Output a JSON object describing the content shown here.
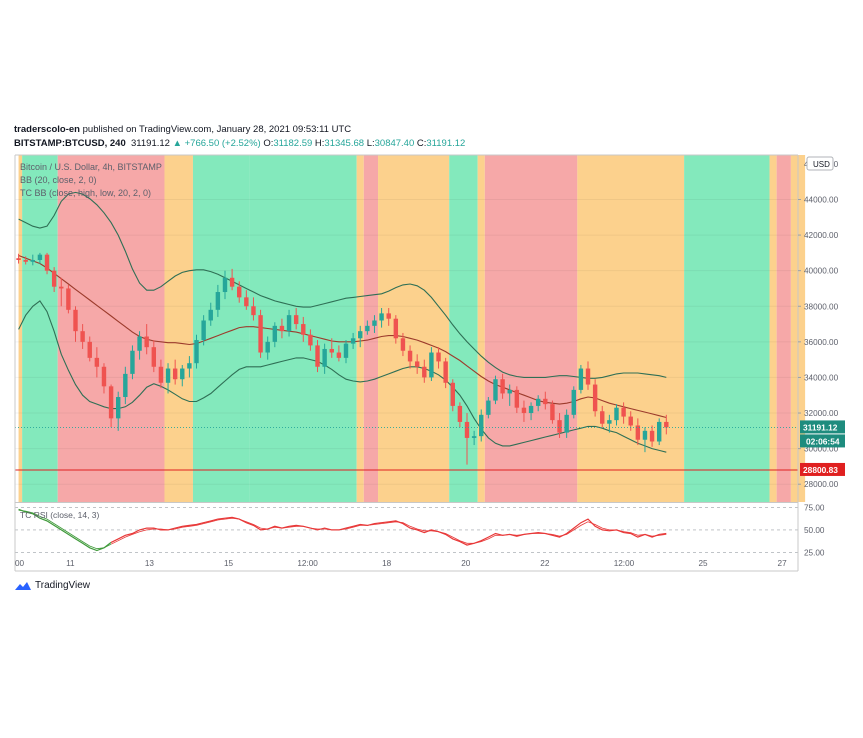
{
  "header": {
    "author": "traderscolo-en",
    "published": "published on TradingView.com, January 28, 2021 09:53:11 UTC",
    "symbol": "BITSTAMP:BTCUSD, 240",
    "last": "31191.12",
    "change": "▲ +766.50 (+2.52%)",
    "o_label": "O:",
    "o_val": "31182.59",
    "h_label": "H:",
    "h_val": "31345.68",
    "l_label": "L:",
    "l_val": "30847.40",
    "c_label": "C:",
    "c_val": "31191.12"
  },
  "legend": {
    "title": "Bitcoin / U.S. Dollar, 4h, BITSTAMP",
    "bb": "BB (20, close, 2, 0)",
    "tcbb": "TC BB (close, high, low, 20, 2, 0)",
    "rsi": "TC RSI (close, 14, 3)"
  },
  "currency": "USD",
  "price_tag": "31191.12",
  "countdown": "02:06:54",
  "level_tag": "28800.83",
  "brand": "TradingView",
  "colors": {
    "up": "#26a69a",
    "down": "#ef5350",
    "zone_green": "#7ce8b8",
    "zone_red": "#f5a3a3",
    "zone_orange": "#fccf87",
    "level": "#e02020",
    "rsi": "#e83838",
    "rsi_early": "#3f9a3a"
  },
  "chart_data": {
    "type": "candlestick",
    "title": "Bitcoin / U.S. Dollar, 4h, BITSTAMP",
    "ylim": [
      27000,
      46500
    ],
    "y_ticks": [
      "28000.00",
      "30000.00",
      "32000.00",
      "34000.00",
      "36000.00",
      "38000.00",
      "40000.00",
      "42000.00",
      "44000.00"
    ],
    "y_top_partial": "46000.00",
    "x_ticks": [
      "00",
      "11",
      "13",
      "15",
      "12:00",
      "18",
      "20",
      "22",
      "12:00",
      "25",
      "27"
    ],
    "candles": [
      [
        40700,
        40950,
        40400,
        40600
      ],
      [
        40600,
        40800,
        40350,
        40500
      ],
      [
        40500,
        40900,
        40300,
        40600
      ],
      [
        40600,
        41000,
        40400,
        40900
      ],
      [
        40900,
        41000,
        39800,
        40000
      ],
      [
        40000,
        40200,
        38800,
        39100
      ],
      [
        39100,
        39600,
        38000,
        39000
      ],
      [
        39000,
        39200,
        37600,
        37800
      ],
      [
        37800,
        38000,
        36000,
        36600
      ],
      [
        36600,
        37000,
        35600,
        36000
      ],
      [
        36000,
        36300,
        34900,
        35100
      ],
      [
        35100,
        35700,
        34000,
        34600
      ],
      [
        34600,
        34800,
        33100,
        33500
      ],
      [
        33500,
        33600,
        31200,
        31700
      ],
      [
        31700,
        33200,
        31000,
        32900
      ],
      [
        32900,
        34600,
        32500,
        34200
      ],
      [
        34200,
        35800,
        33900,
        35500
      ],
      [
        35500,
        36600,
        35000,
        36300
      ],
      [
        36300,
        37000,
        35300,
        35700
      ],
      [
        35700,
        36100,
        34300,
        34600
      ],
      [
        34600,
        35000,
        33400,
        33700
      ],
      [
        33700,
        34800,
        33100,
        34500
      ],
      [
        34500,
        35000,
        33600,
        33900
      ],
      [
        33900,
        34700,
        33500,
        34500
      ],
      [
        34500,
        35200,
        34000,
        34800
      ],
      [
        34800,
        36400,
        34500,
        36100
      ],
      [
        36100,
        37500,
        35800,
        37200
      ],
      [
        37200,
        38200,
        36900,
        37800
      ],
      [
        37800,
        39200,
        37400,
        38800
      ],
      [
        38800,
        40000,
        38400,
        39600
      ],
      [
        39600,
        40100,
        38900,
        39100
      ],
      [
        39100,
        39400,
        38200,
        38500
      ],
      [
        38500,
        38900,
        37800,
        38000
      ],
      [
        38000,
        38500,
        37200,
        37500
      ],
      [
        37500,
        37800,
        35100,
        35400
      ],
      [
        35400,
        36300,
        35000,
        36000
      ],
      [
        36000,
        37100,
        35700,
        36900
      ],
      [
        36900,
        37300,
        36200,
        36600
      ],
      [
        36600,
        37800,
        36300,
        37500
      ],
      [
        37500,
        37900,
        36700,
        37000
      ],
      [
        37000,
        37400,
        36000,
        36400
      ],
      [
        36400,
        36700,
        35500,
        35800
      ],
      [
        35800,
        36100,
        34300,
        34600
      ],
      [
        34600,
        35900,
        34200,
        35600
      ],
      [
        35600,
        36200,
        35100,
        35400
      ],
      [
        35400,
        35800,
        34900,
        35100
      ],
      [
        35100,
        36100,
        34800,
        35900
      ],
      [
        35900,
        36500,
        35600,
        36200
      ],
      [
        36200,
        36900,
        35700,
        36600
      ],
      [
        36600,
        37200,
        36400,
        36900
      ],
      [
        36900,
        37500,
        36500,
        37200
      ],
      [
        37200,
        37900,
        36800,
        37600
      ],
      [
        37600,
        37900,
        36900,
        37300
      ],
      [
        37300,
        37500,
        35900,
        36200
      ],
      [
        36200,
        36500,
        35200,
        35500
      ],
      [
        35500,
        35800,
        34500,
        34900
      ],
      [
        34900,
        35300,
        34200,
        34600
      ],
      [
        34600,
        35000,
        33700,
        34000
      ],
      [
        34000,
        35700,
        33800,
        35400
      ],
      [
        35400,
        35700,
        34500,
        34900
      ],
      [
        34900,
        35100,
        33400,
        33700
      ],
      [
        33700,
        33900,
        32100,
        32400
      ],
      [
        32400,
        32600,
        31200,
        31500
      ],
      [
        31500,
        32000,
        29100,
        30600
      ],
      [
        30600,
        31000,
        30200,
        30700
      ],
      [
        30700,
        32200,
        30400,
        31900
      ],
      [
        31900,
        32900,
        31700,
        32700
      ],
      [
        32700,
        34100,
        32500,
        33900
      ],
      [
        33900,
        34200,
        32800,
        33100
      ],
      [
        33100,
        33600,
        32400,
        33300
      ],
      [
        33300,
        33500,
        32000,
        32300
      ],
      [
        32300,
        32700,
        31500,
        32000
      ],
      [
        32000,
        32600,
        31600,
        32400
      ],
      [
        32400,
        33000,
        32100,
        32800
      ],
      [
        32800,
        33200,
        32200,
        32500
      ],
      [
        32500,
        32700,
        31400,
        31600
      ],
      [
        31600,
        32000,
        30600,
        30900
      ],
      [
        30900,
        32200,
        30600,
        31900
      ],
      [
        31900,
        33500,
        31700,
        33300
      ],
      [
        33300,
        34700,
        33100,
        34500
      ],
      [
        34500,
        34900,
        33300,
        33600
      ],
      [
        33600,
        33900,
        31800,
        32100
      ],
      [
        32100,
        32400,
        31200,
        31400
      ],
      [
        31400,
        31900,
        30900,
        31600
      ],
      [
        31600,
        32500,
        31300,
        32300
      ],
      [
        32300,
        32600,
        31400,
        31800
      ],
      [
        31800,
        32100,
        31000,
        31300
      ],
      [
        31300,
        31700,
        30200,
        30500
      ],
      [
        30500,
        31200,
        29800,
        31000
      ],
      [
        31000,
        31300,
        30100,
        30400
      ],
      [
        30400,
        31700,
        30200,
        31500
      ],
      [
        31500,
        31900,
        30800,
        31191
      ]
    ],
    "bb_mid": [
      40850,
      40700,
      40550,
      40400,
      40150,
      39850,
      39550,
      39250,
      38950,
      38650,
      38350,
      38050,
      37750,
      37450,
      37150,
      36850,
      36550,
      36300,
      36150,
      36050,
      36000,
      35950,
      35950,
      35900,
      35850,
      35900,
      36050,
      36200,
      36350,
      36500,
      36650,
      36800,
      36850,
      36850,
      36800,
      36750,
      36700,
      36650,
      36600,
      36550,
      36450,
      36350,
      36250,
      36150,
      36050,
      36000,
      36000,
      36000,
      36050,
      36100,
      36200,
      36300,
      36350,
      36350,
      36300,
      36200,
      36100,
      35950,
      35800,
      35650,
      35450,
      35200,
      34950,
      34650,
      34350,
      34050,
      33800,
      33600,
      33450,
      33300,
      33150,
      33000,
      32850,
      32700,
      32600,
      32550,
      32500,
      32550,
      32650,
      32800,
      32900,
      32850,
      32700,
      32550,
      32450,
      32350,
      32250,
      32150,
      32050,
      31950,
      31850,
      31750
    ],
    "bb_upper": [
      42900,
      42700,
      42500,
      42400,
      42500,
      43100,
      43900,
      44300,
      44400,
      44300,
      44050,
      43700,
      43250,
      42700,
      42000,
      41100,
      40100,
      39300,
      38900,
      38900,
      39100,
      39400,
      39700,
      39900,
      40000,
      40050,
      40050,
      39950,
      39800,
      39600,
      39400,
      39200,
      39000,
      38800,
      38600,
      38450,
      38300,
      38200,
      38100,
      38000,
      37950,
      37950,
      38050,
      38150,
      38250,
      38350,
      38450,
      38500,
      38550,
      38600,
      38650,
      38700,
      38850,
      39050,
      39200,
      39250,
      39150,
      38900,
      38500,
      38000,
      37500,
      36950,
      36450,
      36000,
      35600,
      35200,
      34850,
      34550,
      34300,
      34150,
      34050,
      34000,
      34000,
      34000,
      34000,
      34050,
      34100,
      34100,
      34050,
      34000,
      33950,
      33950,
      34000,
      34100,
      34200,
      34250,
      34250,
      34250,
      34200,
      34150,
      34100,
      34000
    ],
    "bb_lower": [
      36700,
      37500,
      38000,
      38300,
      37700,
      36600,
      35300,
      34400,
      33600,
      33000,
      32650,
      32500,
      32350,
      32250,
      32250,
      32350,
      32600,
      33000,
      33450,
      33650,
      33500,
      33300,
      33050,
      32800,
      32650,
      32650,
      32850,
      33100,
      33450,
      33800,
      34150,
      34450,
      34600,
      34600,
      34600,
      34700,
      34800,
      34900,
      35000,
      35100,
      35100,
      35000,
      34900,
      34700,
      34450,
      34150,
      33900,
      33800,
      33750,
      33800,
      33900,
      34050,
      34200,
      34350,
      34500,
      34600,
      34600,
      34500,
      34350,
      34150,
      33850,
      33450,
      33000,
      32400,
      31700,
      31100,
      30600,
      30300,
      30150,
      30150,
      30250,
      30350,
      30450,
      30550,
      30650,
      30750,
      30850,
      30950,
      31050,
      31150,
      31250,
      31250,
      31150,
      31000,
      30900,
      30700,
      30500,
      30300,
      30150,
      30000,
      29900,
      29800
    ],
    "zones": [
      [
        "orange",
        0,
        0.5
      ],
      [
        "green",
        0.5,
        5.5
      ],
      [
        "red",
        5.5,
        20.5
      ],
      [
        "orange",
        20.5,
        24.5
      ],
      [
        "green",
        24.5,
        32.5
      ],
      [
        "green",
        32.5,
        47.5
      ],
      [
        "orange",
        47.5,
        48.5
      ],
      [
        "red",
        48.5,
        50.5
      ],
      [
        "orange",
        50.5,
        60.5
      ],
      [
        "green",
        60.5,
        64.5
      ],
      [
        "orange",
        64.5,
        65.5
      ],
      [
        "red",
        65.5,
        78.5
      ],
      [
        "orange",
        78.5,
        93.5
      ],
      [
        "green",
        93.5,
        105.5
      ],
      [
        "orange",
        105.5,
        106.5
      ],
      [
        "red",
        106.5,
        108.5
      ],
      [
        "orange",
        108.5,
        110.5
      ]
    ],
    "level_line": 28800.83,
    "last_price": 31191.12,
    "rsi": {
      "ylim": [
        22,
        80
      ],
      "y_ticks": [
        "25.00",
        "50.00",
        "75.00"
      ],
      "values": [
        73,
        70,
        68,
        63,
        60,
        55,
        50,
        45,
        40,
        35,
        30,
        27,
        30,
        36,
        40,
        44,
        46,
        50,
        52,
        52,
        50,
        50,
        52,
        54,
        55,
        56,
        58,
        60,
        62,
        63,
        64,
        62,
        58,
        55,
        50,
        51,
        54,
        52,
        54,
        55,
        54,
        52,
        50,
        52,
        50,
        50,
        52,
        54,
        56,
        55,
        57,
        58,
        59,
        60,
        57,
        52,
        50,
        47,
        50,
        48,
        45,
        40,
        37,
        33,
        35,
        38,
        42,
        46,
        44,
        45,
        43,
        45,
        46,
        47,
        46,
        44,
        42,
        46,
        52,
        58,
        62,
        54,
        50,
        49,
        50,
        47,
        46,
        42,
        45,
        42,
        45,
        46
      ],
      "signal": [
        72,
        71,
        69,
        65,
        62,
        57,
        52,
        47,
        42,
        37,
        32,
        29,
        30,
        34,
        38,
        42,
        45,
        48,
        50,
        51,
        51,
        50,
        51,
        53,
        54,
        55,
        57,
        59,
        61,
        62,
        63,
        62,
        59,
        56,
        52,
        51,
        53,
        52,
        53,
        54,
        54,
        52,
        51,
        51,
        50,
        50,
        51,
        53,
        55,
        55,
        56,
        57,
        58,
        59,
        58,
        54,
        51,
        49,
        49,
        48,
        46,
        42,
        38,
        35,
        35,
        37,
        40,
        44,
        44,
        45,
        44,
        45,
        46,
        46,
        46,
        45,
        43,
        45,
        50,
        55,
        59,
        56,
        52,
        50,
        50,
        48,
        47,
        44,
        45,
        43,
        44,
        45
      ],
      "green_until": 13
    }
  }
}
